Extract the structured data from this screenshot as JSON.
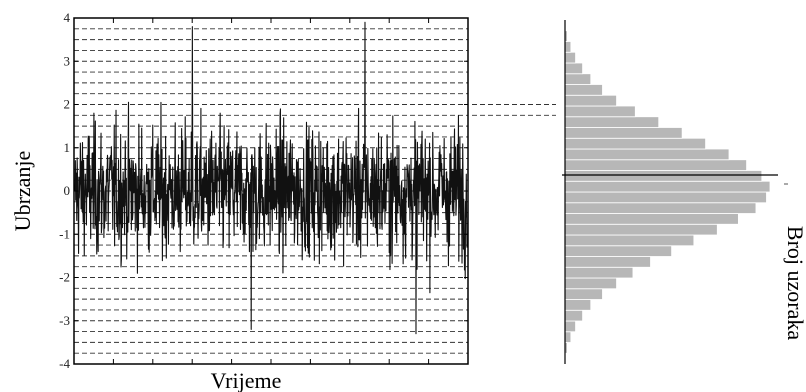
{
  "chart_data": [
    {
      "type": "line",
      "title": "",
      "xlabel": "Vrijeme",
      "ylabel": "Ubrzanje",
      "ylim": [
        -4,
        4
      ],
      "yticks": [
        -4,
        -3,
        -2,
        -1,
        0,
        1,
        2,
        3,
        4
      ],
      "ytick_labels": [
        "-4",
        "-3",
        "-2",
        "-1",
        "0",
        "1",
        "2",
        "3",
        "4"
      ],
      "grid": "horizontal dashed",
      "grid_y": [
        -4,
        -3.75,
        -3.5,
        -3.25,
        -3,
        -2.75,
        -2.5,
        -2.25,
        -2,
        -1.75,
        -1.5,
        -1.25,
        -1,
        -0.75,
        -0.5,
        -0.25,
        0,
        0.25,
        0.5,
        0.75,
        1,
        1.25,
        1.5,
        1.75,
        2,
        2.25,
        2.5,
        2.75,
        3,
        3.25,
        3.5,
        3.75,
        4
      ],
      "series": [
        {
          "color": "#111111",
          "x": [
            0,
            0.3,
            0.45,
            0.74,
            0.87
          ],
          "y": [
            0,
            3.8,
            -3.2,
            3.9,
            -3.3
          ],
          "description_of_extremes": "random-vibration signal, peaks up to about 3.8 and troughs near -3.3"
        }
      ]
    },
    {
      "type": "bar",
      "orientation": "horizontal",
      "xlabel": "Broj uzoraka",
      "ylabel": "",
      "ylim": [
        -4,
        4
      ],
      "bin_width": 0.25,
      "bin_centers": [
        -3.875,
        -3.625,
        -3.375,
        -3.125,
        -2.875,
        -2.625,
        -2.375,
        -2.125,
        -1.875,
        -1.625,
        -1.375,
        -1.125,
        -0.875,
        -0.625,
        -0.375,
        -0.125,
        0.125,
        0.375,
        0.625,
        0.875,
        1.125,
        1.375,
        1.625,
        1.875,
        2.125,
        2.375,
        2.625,
        2.875,
        3.125,
        3.375,
        3.625,
        3.875
      ],
      "values": [
        0,
        2,
        5,
        9,
        15,
        22,
        32,
        44,
        58,
        73,
        91,
        110,
        130,
        148,
        163,
        172,
        175,
        168,
        155,
        140,
        120,
        100,
        80,
        60,
        44,
        32,
        22,
        15,
        9,
        5,
        2,
        0
      ],
      "bar_color": "#b7b7b7",
      "dashed_link": [
        1.75,
        2.0
      ]
    }
  ]
}
